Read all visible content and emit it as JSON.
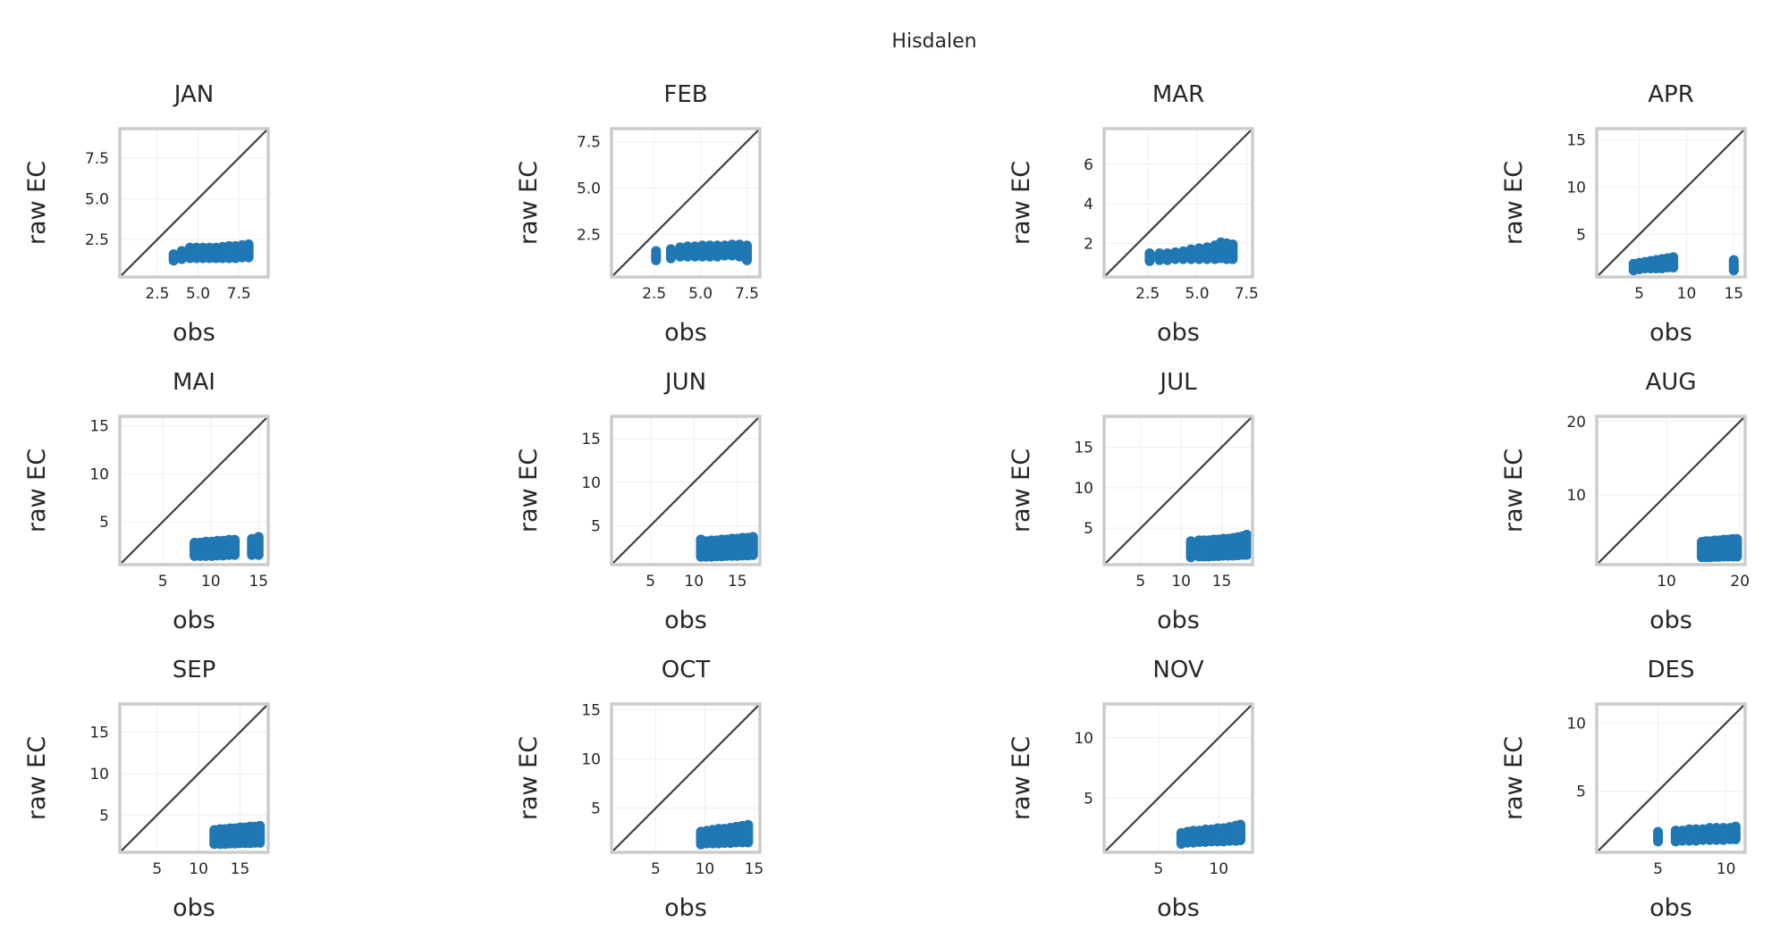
{
  "figure": {
    "suptitle": "Hisdalen"
  },
  "style": {
    "point_color": "#1f77b4",
    "diagonal_color": "#3d3d3d",
    "frame_color": "#cccccc",
    "grid_color": "#eeeeee",
    "background": "#ffffff"
  },
  "chart_data": [
    {
      "type": "scatter",
      "title": "JAN",
      "xlabel": "obs",
      "ylabel": "raw EC",
      "xlim": [
        0.2,
        9.3
      ],
      "ylim": [
        0.2,
        9.3
      ],
      "xticks": [
        2.5,
        5.0,
        7.5
      ],
      "xticklabels": [
        "2.5",
        "5.0",
        "7.5"
      ],
      "yticks": [
        2.5,
        5.0,
        7.5
      ],
      "yticklabels": [
        "2.5",
        "5.0",
        "7.5"
      ],
      "x": [
        3.5,
        4.0,
        4.5,
        4.9,
        5.3,
        5.7,
        6.1,
        6.5,
        6.9,
        7.3,
        7.7,
        8.1
      ],
      "y_min": [
        1.2,
        1.3,
        1.35,
        1.35,
        1.35,
        1.35,
        1.35,
        1.35,
        1.35,
        1.35,
        1.4,
        1.4
      ],
      "y_max": [
        1.6,
        1.8,
        2.0,
        2.0,
        2.0,
        2.0,
        2.0,
        2.05,
        2.1,
        2.1,
        2.15,
        2.2
      ]
    },
    {
      "type": "scatter",
      "title": "FEB",
      "xlabel": "obs",
      "ylabel": "raw EC",
      "xlim": [
        0.2,
        8.2
      ],
      "ylim": [
        0.2,
        8.2
      ],
      "xticks": [
        2.5,
        5.0,
        7.5
      ],
      "xticklabels": [
        "2.5",
        "5.0",
        "7.5"
      ],
      "yticks": [
        2.5,
        5.0,
        7.5
      ],
      "yticklabels": [
        "2.5",
        "5.0",
        "7.5"
      ],
      "x": [
        2.6,
        3.4,
        3.9,
        4.3,
        4.7,
        5.1,
        5.5,
        5.9,
        6.3,
        6.7,
        7.1,
        7.5
      ],
      "y_min": [
        1.1,
        1.2,
        1.3,
        1.3,
        1.3,
        1.3,
        1.3,
        1.3,
        1.35,
        1.35,
        1.3,
        1.1
      ],
      "y_max": [
        1.6,
        1.7,
        1.8,
        1.85,
        1.85,
        1.9,
        1.9,
        1.9,
        1.9,
        1.95,
        1.95,
        1.9
      ]
    },
    {
      "type": "scatter",
      "title": "MAR",
      "xlabel": "obs",
      "ylabel": "raw EC",
      "xlim": [
        0.3,
        7.8
      ],
      "ylim": [
        0.3,
        7.8
      ],
      "xticks": [
        2.5,
        5.0,
        7.5
      ],
      "xticklabels": [
        "2.5",
        "5.0",
        "7.5"
      ],
      "yticks": [
        2,
        4,
        6
      ],
      "yticklabels": [
        "2",
        "4",
        "6"
      ],
      "x": [
        2.6,
        3.1,
        3.5,
        3.9,
        4.3,
        4.7,
        5.1,
        5.5,
        5.9,
        6.2,
        6.5,
        6.8
      ],
      "y_min": [
        1.1,
        1.15,
        1.15,
        1.2,
        1.2,
        1.2,
        1.2,
        1.2,
        1.2,
        1.25,
        1.2,
        1.2
      ],
      "y_max": [
        1.5,
        1.5,
        1.5,
        1.55,
        1.6,
        1.7,
        1.75,
        1.8,
        1.9,
        2.05,
        2.0,
        1.95
      ]
    },
    {
      "type": "scatter",
      "title": "APR",
      "xlabel": "obs",
      "ylabel": "raw EC",
      "xlim": [
        0.5,
        16.2
      ],
      "ylim": [
        0.5,
        16.2
      ],
      "xticks": [
        5,
        10,
        15
      ],
      "xticklabels": [
        "5",
        "10",
        "15"
      ],
      "yticks": [
        5,
        10,
        15
      ],
      "yticklabels": [
        "5",
        "10",
        "15"
      ],
      "x": [
        4.4,
        5.0,
        5.6,
        6.2,
        6.8,
        7.4,
        8.0,
        8.6,
        15.0
      ],
      "y_min": [
        1.2,
        1.3,
        1.4,
        1.4,
        1.4,
        1.4,
        1.5,
        1.5,
        1.2
      ],
      "y_max": [
        1.9,
        2.0,
        2.1,
        2.2,
        2.3,
        2.4,
        2.5,
        2.6,
        2.3
      ]
    },
    {
      "type": "scatter",
      "title": "MAI",
      "xlabel": "obs",
      "ylabel": "raw EC",
      "xlim": [
        0.5,
        16.0
      ],
      "ylim": [
        0.5,
        16.0
      ],
      "xticks": [
        5,
        10,
        15
      ],
      "xticklabels": [
        "5",
        "10",
        "15"
      ],
      "yticks": [
        5,
        10,
        15
      ],
      "yticklabels": [
        "5",
        "10",
        "15"
      ],
      "x": [
        8.3,
        8.9,
        9.5,
        10.1,
        10.7,
        11.3,
        11.9,
        12.5,
        14.3,
        15.0
      ],
      "y_min": [
        1.4,
        1.4,
        1.4,
        1.4,
        1.45,
        1.45,
        1.5,
        1.5,
        1.5,
        1.5
      ],
      "y_max": [
        2.8,
        2.8,
        2.9,
        2.9,
        3.0,
        3.0,
        3.1,
        3.1,
        3.2,
        3.4
      ]
    },
    {
      "type": "scatter",
      "title": "JUN",
      "xlabel": "obs",
      "ylabel": "raw EC",
      "xlim": [
        0.5,
        17.6
      ],
      "ylim": [
        0.5,
        17.6
      ],
      "xticks": [
        5,
        10,
        15
      ],
      "xticklabels": [
        "5",
        "10",
        "15"
      ],
      "yticks": [
        5,
        10,
        15
      ],
      "yticklabels": [
        "5",
        "10",
        "15"
      ],
      "x": [
        10.8,
        11.4,
        12.0,
        12.6,
        13.2,
        13.8,
        14.4,
        15.0,
        15.6,
        16.2,
        16.8
      ],
      "y_min": [
        1.4,
        1.4,
        1.4,
        1.45,
        1.45,
        1.5,
        1.5,
        1.5,
        1.55,
        1.55,
        1.6
      ],
      "y_max": [
        3.4,
        3.2,
        3.3,
        3.3,
        3.4,
        3.4,
        3.5,
        3.5,
        3.6,
        3.6,
        3.7
      ]
    },
    {
      "type": "scatter",
      "title": "JUL",
      "xlabel": "obs",
      "ylabel": "raw EC",
      "xlim": [
        0.5,
        18.8
      ],
      "ylim": [
        0.5,
        18.8
      ],
      "xticks": [
        5,
        10,
        15
      ],
      "xticklabels": [
        "5",
        "10",
        "15"
      ],
      "yticks": [
        5,
        10,
        15
      ],
      "yticklabels": [
        "5",
        "10",
        "15"
      ],
      "x": [
        11.2,
        12.2,
        12.8,
        13.4,
        14.0,
        14.6,
        15.2,
        15.8,
        16.4,
        17.0,
        17.6,
        18.1
      ],
      "y_min": [
        1.4,
        1.5,
        1.5,
        1.5,
        1.55,
        1.55,
        1.6,
        1.6,
        1.6,
        1.65,
        1.7,
        1.7
      ],
      "y_max": [
        3.4,
        3.5,
        3.5,
        3.5,
        3.6,
        3.6,
        3.7,
        3.7,
        3.8,
        3.9,
        4.0,
        4.2
      ]
    },
    {
      "type": "scatter",
      "title": "AUG",
      "xlabel": "obs",
      "ylabel": "raw EC",
      "xlim": [
        0.5,
        20.7
      ],
      "ylim": [
        0.5,
        20.7
      ],
      "xticks": [
        10,
        20
      ],
      "xticklabels": [
        "10",
        "20"
      ],
      "yticks": [
        10,
        20
      ],
      "yticklabels": [
        "10",
        "20"
      ],
      "x": [
        14.8,
        15.4,
        16.0,
        16.6,
        17.2,
        17.8,
        18.4,
        19.0,
        19.6
      ],
      "y_min": [
        1.5,
        1.5,
        1.5,
        1.55,
        1.55,
        1.6,
        1.6,
        1.6,
        1.6
      ],
      "y_max": [
        3.6,
        3.7,
        3.7,
        3.8,
        3.8,
        3.9,
        3.9,
        4.0,
        4.0
      ]
    },
    {
      "type": "scatter",
      "title": "SEP",
      "xlabel": "obs",
      "ylabel": "raw EC",
      "xlim": [
        0.5,
        18.4
      ],
      "ylim": [
        0.5,
        18.4
      ],
      "xticks": [
        5,
        10,
        15
      ],
      "xticklabels": [
        "5",
        "10",
        "15"
      ],
      "yticks": [
        5,
        10,
        15
      ],
      "yticklabels": [
        "5",
        "10",
        "15"
      ],
      "x": [
        11.9,
        12.6,
        13.2,
        13.8,
        14.4,
        15.0,
        15.6,
        16.2,
        16.8,
        17.4
      ],
      "y_min": [
        1.5,
        1.5,
        1.5,
        1.55,
        1.55,
        1.6,
        1.6,
        1.6,
        1.65,
        1.65
      ],
      "y_max": [
        3.2,
        3.3,
        3.3,
        3.4,
        3.4,
        3.5,
        3.5,
        3.6,
        3.6,
        3.7
      ]
    },
    {
      "type": "scatter",
      "title": "OCT",
      "xlabel": "obs",
      "ylabel": "raw EC",
      "xlim": [
        0.5,
        15.6
      ],
      "ylim": [
        0.5,
        15.6
      ],
      "xticks": [
        5,
        10,
        15
      ],
      "xticklabels": [
        "5",
        "10",
        "15"
      ],
      "yticks": [
        5,
        10,
        15
      ],
      "yticklabels": [
        "5",
        "10",
        "15"
      ],
      "x": [
        9.6,
        10.2,
        10.8,
        11.4,
        12.0,
        12.6,
        13.2,
        13.8,
        14.4
      ],
      "y_min": [
        1.3,
        1.4,
        1.4,
        1.4,
        1.45,
        1.45,
        1.5,
        1.5,
        1.5
      ],
      "y_max": [
        2.6,
        2.7,
        2.8,
        2.9,
        2.9,
        3.0,
        3.1,
        3.2,
        3.3
      ]
    },
    {
      "type": "scatter",
      "title": "NOV",
      "xlabel": "obs",
      "ylabel": "raw EC",
      "xlim": [
        0.5,
        12.8
      ],
      "ylim": [
        0.5,
        12.8
      ],
      "xticks": [
        5,
        10
      ],
      "xticklabels": [
        "5",
        "10"
      ],
      "yticks": [
        5,
        10
      ],
      "yticklabels": [
        "5",
        "10"
      ],
      "x": [
        6.9,
        7.4,
        7.9,
        8.4,
        8.9,
        9.4,
        9.9,
        10.4,
        10.9,
        11.4,
        11.8
      ],
      "y_min": [
        1.2,
        1.3,
        1.3,
        1.35,
        1.35,
        1.4,
        1.4,
        1.4,
        1.45,
        1.45,
        1.5
      ],
      "y_max": [
        2.1,
        2.2,
        2.3,
        2.3,
        2.4,
        2.4,
        2.5,
        2.5,
        2.6,
        2.7,
        2.8
      ]
    },
    {
      "type": "scatter",
      "title": "DES",
      "xlabel": "obs",
      "ylabel": "raw EC",
      "xlim": [
        0.5,
        11.4
      ],
      "ylim": [
        0.5,
        11.4
      ],
      "xticks": [
        5,
        10
      ],
      "xticklabels": [
        "5",
        "10"
      ],
      "yticks": [
        5,
        10
      ],
      "yticklabels": [
        "5",
        "10"
      ],
      "x": [
        5.0,
        6.3,
        6.8,
        7.3,
        7.8,
        8.3,
        8.8,
        9.3,
        9.8,
        10.3,
        10.7
      ],
      "y_min": [
        1.3,
        1.3,
        1.35,
        1.35,
        1.35,
        1.4,
        1.4,
        1.4,
        1.4,
        1.45,
        1.45
      ],
      "y_max": [
        2.0,
        2.1,
        2.1,
        2.2,
        2.2,
        2.2,
        2.3,
        2.3,
        2.3,
        2.3,
        2.4
      ]
    }
  ]
}
